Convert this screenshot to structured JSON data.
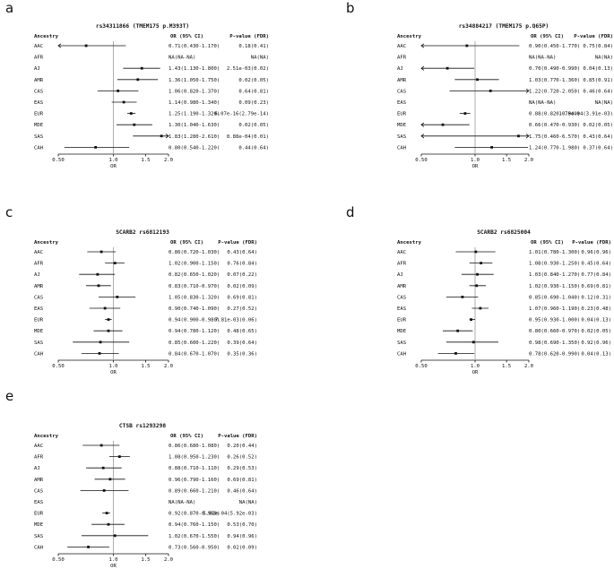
{
  "figure": {
    "background": "#ffffff",
    "colors": {
      "text": "#111111",
      "line": "#111111",
      "refline": "#9a9a9a",
      "marker": "#111111"
    }
  },
  "chart_data": [
    {
      "type": "forest",
      "panel_label": "a",
      "title": "rs34311866 (TMEM175 p.M393T)",
      "columns": {
        "ancestry": "Ancestry",
        "or": "OR (95% CI)",
        "p": "P-value (FDR)"
      },
      "xlabel": "OR",
      "xscale": "log2",
      "xlim": [
        0.5,
        2.0
      ],
      "refline": 1.0,
      "xticks": [
        {
          "v": 0.5,
          "label": "0.50"
        },
        {
          "v": 1.0,
          "label": "1.0"
        },
        {
          "v": 1.5,
          "label": "1.5"
        },
        {
          "v": 2.0,
          "label": "2.0"
        }
      ],
      "rows": [
        {
          "ancestry": "AAC",
          "or": 0.71,
          "lo": 0.43,
          "hi": 1.17,
          "or_text": "0.71(0.430-1.170)",
          "p_text": "0.18(0.41)"
        },
        {
          "ancestry": "AFR",
          "or": null,
          "lo": null,
          "hi": null,
          "or_text": "NA(NA-NA)",
          "p_text": "NA(NA)"
        },
        {
          "ancestry": "AJ",
          "or": 1.43,
          "lo": 1.13,
          "hi": 1.8,
          "or_text": "1.43(1.130-1.800)",
          "p_text": "2.51e-03(0.02)"
        },
        {
          "ancestry": "AMR",
          "or": 1.36,
          "lo": 1.05,
          "hi": 1.75,
          "or_text": "1.36(1.050-1.750)",
          "p_text": "0.02(0.05)"
        },
        {
          "ancestry": "CAS",
          "or": 1.06,
          "lo": 0.82,
          "hi": 1.37,
          "or_text": "1.06(0.820-1.370)",
          "p_text": "0.64(0.81)"
        },
        {
          "ancestry": "EAS",
          "or": 1.14,
          "lo": 0.98,
          "hi": 1.34,
          "or_text": "1.14(0.980-1.340)",
          "p_text": "0.09(0.23)"
        },
        {
          "ancestry": "EUR",
          "or": 1.25,
          "lo": 1.19,
          "hi": 1.32,
          "or_text": "1.25(1.190-1.320)",
          "p_text": "6.07e-16(2.79e-14)"
        },
        {
          "ancestry": "MDE",
          "or": 1.3,
          "lo": 1.04,
          "hi": 1.63,
          "or_text": "1.30(1.040-1.630)",
          "p_text": "0.02(0.05)"
        },
        {
          "ancestry": "SAS",
          "or": 1.83,
          "lo": 1.28,
          "hi": 2.61,
          "or_text": "1.83(1.280-2.610)",
          "p_text": "8.88e-04(0.01)"
        },
        {
          "ancestry": "CAH",
          "or": 0.8,
          "lo": 0.54,
          "hi": 1.22,
          "or_text": "0.80(0.540-1.220)",
          "p_text": "0.44(0.64)"
        }
      ]
    },
    {
      "type": "forest",
      "panel_label": "b",
      "title": "rs34884217 (TMEM175 p.Q65P)",
      "columns": {
        "ancestry": "Ancestry",
        "or": "OR (95% CI)",
        "p": "P-value (FDR)"
      },
      "xlabel": "OR",
      "xscale": "log2",
      "xlim": [
        0.5,
        2.0
      ],
      "refline": 1.0,
      "xticks": [
        {
          "v": 0.5,
          "label": "0.50"
        },
        {
          "v": 1.0,
          "label": "1.0"
        },
        {
          "v": 1.5,
          "label": "1.5"
        },
        {
          "v": 2.0,
          "label": "2.0"
        }
      ],
      "rows": [
        {
          "ancestry": "AAC",
          "or": 0.9,
          "lo": 0.45,
          "hi": 1.77,
          "or_text": "0.90(0.450-1.770)",
          "p_text": "0.75(0.84)"
        },
        {
          "ancestry": "AFR",
          "or": null,
          "lo": null,
          "hi": null,
          "or_text": "NA(NA-NA)",
          "p_text": "NA(NA)"
        },
        {
          "ancestry": "AJ",
          "or": 0.7,
          "lo": 0.49,
          "hi": 0.99,
          "or_text": "0.70(0.490-0.990)",
          "p_text": "0.04(0.13)"
        },
        {
          "ancestry": "AMR",
          "or": 1.03,
          "lo": 0.77,
          "hi": 1.36,
          "or_text": "1.03(0.770-1.360)",
          "p_text": "0.85(0.91)"
        },
        {
          "ancestry": "CAS",
          "or": 1.22,
          "lo": 0.72,
          "hi": 2.05,
          "or_text": "1.22(0.720-2.050)",
          "p_text": "0.46(0.64)"
        },
        {
          "ancestry": "EAS",
          "or": null,
          "lo": null,
          "hi": null,
          "or_text": "NA(NA-NA)",
          "p_text": "NA(NA)"
        },
        {
          "ancestry": "EUR",
          "or": 0.88,
          "lo": 0.82,
          "hi": 0.94,
          "or_text": "0.88(0.820-0.940)",
          "p_text": "1.78e-04(3.91e-03)"
        },
        {
          "ancestry": "MDE",
          "or": 0.66,
          "lo": 0.47,
          "hi": 0.93,
          "or_text": "0.66(0.470-0.930)",
          "p_text": "0.02(0.05)"
        },
        {
          "ancestry": "SAS",
          "or": 1.75,
          "lo": 0.46,
          "hi": 6.57,
          "or_text": "1.75(0.460-6.570)",
          "p_text": "0.43(0.64)"
        },
        {
          "ancestry": "CAH",
          "or": 1.24,
          "lo": 0.77,
          "hi": 1.98,
          "or_text": "1.24(0.770-1.980)",
          "p_text": "0.37(0.64)"
        }
      ]
    },
    {
      "type": "forest",
      "panel_label": "c",
      "title": "SCARB2 rs6812193",
      "columns": {
        "ancestry": "Ancestry",
        "or": "OR (95% CI)",
        "p": "P-value (FDR)"
      },
      "xlabel": "OR",
      "xscale": "log2",
      "xlim": [
        0.5,
        2.0
      ],
      "refline": 1.0,
      "xticks": [
        {
          "v": 0.5,
          "label": "0.50"
        },
        {
          "v": 1.0,
          "label": "1.0"
        },
        {
          "v": 1.5,
          "label": "1.5"
        },
        {
          "v": 2.0,
          "label": "2.0"
        }
      ],
      "rows": [
        {
          "ancestry": "AAC",
          "or": 0.86,
          "lo": 0.72,
          "hi": 1.03,
          "or_text": "0.86(0.720-1.030)",
          "p_text": "0.43(0.64)"
        },
        {
          "ancestry": "AFR",
          "or": 1.02,
          "lo": 0.9,
          "hi": 1.15,
          "or_text": "1.02(0.900-1.150)",
          "p_text": "0.76(0.84)"
        },
        {
          "ancestry": "AJ",
          "or": 0.82,
          "lo": 0.65,
          "hi": 1.02,
          "or_text": "0.82(0.650-1.020)",
          "p_text": "0.07(0.22)"
        },
        {
          "ancestry": "AMR",
          "or": 0.83,
          "lo": 0.71,
          "hi": 0.97,
          "or_text": "0.83(0.710-0.970)",
          "p_text": "0.02(0.09)"
        },
        {
          "ancestry": "CAS",
          "or": 1.05,
          "lo": 0.83,
          "hi": 1.32,
          "or_text": "1.05(0.830-1.320)",
          "p_text": "0.69(0.81)"
        },
        {
          "ancestry": "EAS",
          "or": 0.9,
          "lo": 0.74,
          "hi": 1.09,
          "or_text": "0.90(0.740-1.090)",
          "p_text": "0.27(0.52)"
        },
        {
          "ancestry": "EUR",
          "or": 0.94,
          "lo": 0.9,
          "hi": 0.98,
          "or_text": "0.94(0.900-0.980)",
          "p_text": "7.81e-03(0.06)"
        },
        {
          "ancestry": "MDE",
          "or": 0.94,
          "lo": 0.78,
          "hi": 1.12,
          "or_text": "0.94(0.780-1.120)",
          "p_text": "0.48(0.65)"
        },
        {
          "ancestry": "SAS",
          "or": 0.85,
          "lo": 0.6,
          "hi": 1.22,
          "or_text": "0.85(0.600-1.220)",
          "p_text": "0.39(0.64)"
        },
        {
          "ancestry": "CAH",
          "or": 0.84,
          "lo": 0.67,
          "hi": 1.07,
          "or_text": "0.84(0.670-1.070)",
          "p_text": "0.35(0.36)"
        }
      ]
    },
    {
      "type": "forest",
      "panel_label": "d",
      "title": "SCARB2 rs6825004",
      "columns": {
        "ancestry": "Ancestry",
        "or": "OR (95% CI)",
        "p": "P-value (FDR)"
      },
      "xlabel": "OR",
      "xscale": "log2",
      "xlim": [
        0.5,
        2.0
      ],
      "refline": 1.0,
      "xticks": [
        {
          "v": 0.5,
          "label": "0.50"
        },
        {
          "v": 1.0,
          "label": "1.0"
        },
        {
          "v": 1.5,
          "label": "1.5"
        },
        {
          "v": 2.0,
          "label": "2.0"
        }
      ],
      "rows": [
        {
          "ancestry": "AAC",
          "or": 1.01,
          "lo": 0.78,
          "hi": 1.3,
          "or_text": "1.01(0.780-1.300)",
          "p_text": "0.96(0.96)"
        },
        {
          "ancestry": "AFR",
          "or": 1.08,
          "lo": 0.93,
          "hi": 1.25,
          "or_text": "1.08(0.930-1.250)",
          "p_text": "0.45(0.64)"
        },
        {
          "ancestry": "AJ",
          "or": 1.03,
          "lo": 0.84,
          "hi": 1.27,
          "or_text": "1.03(0.840-1.270)",
          "p_text": "0.77(0.84)"
        },
        {
          "ancestry": "AMR",
          "or": 1.02,
          "lo": 0.93,
          "hi": 1.15,
          "or_text": "1.02(0.930-1.150)",
          "p_text": "0.69(0.81)"
        },
        {
          "ancestry": "CAS",
          "or": 0.85,
          "lo": 0.69,
          "hi": 1.04,
          "or_text": "0.85(0.690-1.040)",
          "p_text": "0.12(0.31)"
        },
        {
          "ancestry": "EAS",
          "or": 1.07,
          "lo": 0.96,
          "hi": 1.19,
          "or_text": "1.07(0.960-1.190)",
          "p_text": "0.23(0.48)"
        },
        {
          "ancestry": "EUR",
          "or": 0.95,
          "lo": 0.93,
          "hi": 1.0,
          "or_text": "0.95(0.930-1.000)",
          "p_text": "0.04(0.13)"
        },
        {
          "ancestry": "MDE",
          "or": 0.8,
          "lo": 0.66,
          "hi": 0.97,
          "or_text": "0.80(0.660-0.970)",
          "p_text": "0.02(0.05)"
        },
        {
          "ancestry": "SAS",
          "or": 0.98,
          "lo": 0.69,
          "hi": 1.35,
          "or_text": "0.98(0.690-1.350)",
          "p_text": "0.92(0.96)"
        },
        {
          "ancestry": "CAH",
          "or": 0.78,
          "lo": 0.62,
          "hi": 0.99,
          "or_text": "0.78(0.620-0.990)",
          "p_text": "0.04(0.13)"
        }
      ]
    },
    {
      "type": "forest",
      "panel_label": "e",
      "title": "CTSB rs1293298",
      "columns": {
        "ancestry": "Ancestry",
        "or": "OR (95% CI)",
        "p": "P-value (FDR)"
      },
      "xlabel": "OR",
      "xscale": "log2",
      "xlim": [
        0.5,
        2.0
      ],
      "refline": 1.0,
      "xticks": [
        {
          "v": 0.5,
          "label": "0.50"
        },
        {
          "v": 1.0,
          "label": "1.0"
        },
        {
          "v": 1.5,
          "label": "1.5"
        },
        {
          "v": 2.0,
          "label": "2.0"
        }
      ],
      "rows": [
        {
          "ancestry": "AAC",
          "or": 0.86,
          "lo": 0.68,
          "hi": 1.08,
          "or_text": "0.86(0.680-1.080)",
          "p_text": "0.20(0.44)"
        },
        {
          "ancestry": "AFR",
          "or": 1.08,
          "lo": 0.95,
          "hi": 1.23,
          "or_text": "1.08(0.950-1.230)",
          "p_text": "0.26(0.52)"
        },
        {
          "ancestry": "AJ",
          "or": 0.88,
          "lo": 0.71,
          "hi": 1.11,
          "or_text": "0.88(0.710-1.110)",
          "p_text": "0.29(0.53)"
        },
        {
          "ancestry": "AMR",
          "or": 0.96,
          "lo": 0.79,
          "hi": 1.16,
          "or_text": "0.96(0.790-1.160)",
          "p_text": "0.69(0.81)"
        },
        {
          "ancestry": "CAS",
          "or": 0.89,
          "lo": 0.66,
          "hi": 1.21,
          "or_text": "0.89(0.660-1.210)",
          "p_text": "0.46(0.64)"
        },
        {
          "ancestry": "EAS",
          "or": null,
          "lo": null,
          "hi": null,
          "or_text": "NA(NA-NA)",
          "p_text": "NA(NA)"
        },
        {
          "ancestry": "EUR",
          "or": 0.92,
          "lo": 0.87,
          "hi": 0.96,
          "or_text": "0.92(0.870-0.960)",
          "p_text": "5.02e-04(5.92e-03)"
        },
        {
          "ancestry": "MDE",
          "or": 0.94,
          "lo": 0.76,
          "hi": 1.15,
          "or_text": "0.94(0.760-1.150)",
          "p_text": "0.53(0.70)"
        },
        {
          "ancestry": "SAS",
          "or": 1.02,
          "lo": 0.67,
          "hi": 1.55,
          "or_text": "1.02(0.670-1.550)",
          "p_text": "0.94(0.96)"
        },
        {
          "ancestry": "CAH",
          "or": 0.73,
          "lo": 0.56,
          "hi": 0.95,
          "or_text": "0.73(0.560-0.950)",
          "p_text": "0.02(0.09)"
        }
      ]
    }
  ]
}
